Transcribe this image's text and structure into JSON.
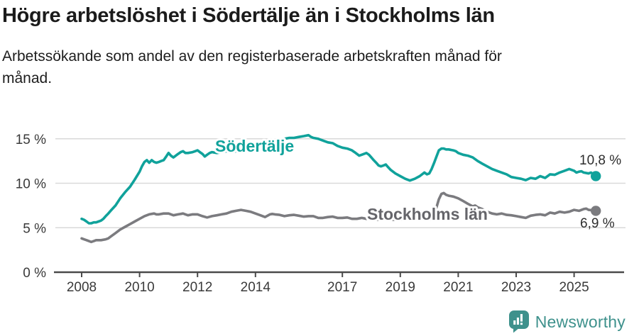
{
  "header": {
    "title": "Högre arbetslöshet i Södertälje än i Stockholms län",
    "subtitle": "Arbetssökande som andel av den registerbaserade arbetskraften månad för\nmånad."
  },
  "chart_data": {
    "type": "line",
    "title": "Högre arbetslöshet i Södertälje än i Stockholms län",
    "subtitle": "Arbetssökande som andel av den registerbaserade arbetskraften månad för månad.",
    "unit": "%",
    "grid": true,
    "legend_position": "inline-labels-on-lines",
    "x_axis": {
      "label": "",
      "range": [
        2007.1,
        2026.7
      ]
    },
    "y_axis": {
      "label": "",
      "range": [
        0,
        17.8
      ]
    },
    "x_ticks": [
      {
        "v": 2008,
        "label": "2008"
      },
      {
        "v": 2010,
        "label": "2010"
      },
      {
        "v": 2012,
        "label": "2012"
      },
      {
        "v": 2014,
        "label": "2014"
      },
      {
        "v": 2017,
        "label": "2017"
      },
      {
        "v": 2019,
        "label": "2019"
      },
      {
        "v": 2021,
        "label": "2021"
      },
      {
        "v": 2023,
        "label": "2023"
      },
      {
        "v": 2025,
        "label": "2025"
      }
    ],
    "y_ticks": [
      {
        "v": 0,
        "label": "0 %"
      },
      {
        "v": 5,
        "label": "5 %"
      },
      {
        "v": 10,
        "label": "10 %"
      },
      {
        "v": 15,
        "label": "15 %"
      }
    ],
    "series": [
      {
        "name": "Stockholms län",
        "color": "#7b7b7f",
        "label_color": "#65656a",
        "end_label": "6,9 %",
        "end_value": 6.9,
        "points": [
          [
            2008.0,
            3.8
          ],
          [
            2008.08,
            3.7
          ],
          [
            2008.17,
            3.6
          ],
          [
            2008.25,
            3.5
          ],
          [
            2008.33,
            3.4
          ],
          [
            2008.42,
            3.5
          ],
          [
            2008.5,
            3.6
          ],
          [
            2008.67,
            3.6
          ],
          [
            2008.83,
            3.7
          ],
          [
            2008.92,
            3.8
          ],
          [
            2009.0,
            4.0
          ],
          [
            2009.17,
            4.4
          ],
          [
            2009.33,
            4.8
          ],
          [
            2009.5,
            5.1
          ],
          [
            2009.67,
            5.4
          ],
          [
            2009.83,
            5.7
          ],
          [
            2010.0,
            6.0
          ],
          [
            2010.17,
            6.3
          ],
          [
            2010.33,
            6.5
          ],
          [
            2010.5,
            6.6
          ],
          [
            2010.58,
            6.5
          ],
          [
            2010.67,
            6.5
          ],
          [
            2010.83,
            6.6
          ],
          [
            2011.0,
            6.6
          ],
          [
            2011.17,
            6.4
          ],
          [
            2011.33,
            6.5
          ],
          [
            2011.5,
            6.6
          ],
          [
            2011.58,
            6.5
          ],
          [
            2011.67,
            6.4
          ],
          [
            2011.83,
            6.5
          ],
          [
            2012.0,
            6.5
          ],
          [
            2012.17,
            6.3
          ],
          [
            2012.33,
            6.15
          ],
          [
            2012.5,
            6.3
          ],
          [
            2012.67,
            6.4
          ],
          [
            2012.83,
            6.5
          ],
          [
            2013.0,
            6.6
          ],
          [
            2013.17,
            6.8
          ],
          [
            2013.33,
            6.9
          ],
          [
            2013.5,
            7.0
          ],
          [
            2013.67,
            6.9
          ],
          [
            2013.83,
            6.8
          ],
          [
            2014.0,
            6.6
          ],
          [
            2014.17,
            6.4
          ],
          [
            2014.33,
            6.2
          ],
          [
            2014.5,
            6.5
          ],
          [
            2014.58,
            6.55
          ],
          [
            2014.67,
            6.5
          ],
          [
            2014.83,
            6.45
          ],
          [
            2015.0,
            6.3
          ],
          [
            2015.17,
            6.4
          ],
          [
            2015.33,
            6.45
          ],
          [
            2015.5,
            6.35
          ],
          [
            2015.67,
            6.25
          ],
          [
            2015.83,
            6.3
          ],
          [
            2016.0,
            6.3
          ],
          [
            2016.17,
            6.1
          ],
          [
            2016.33,
            6.1
          ],
          [
            2016.5,
            6.2
          ],
          [
            2016.67,
            6.25
          ],
          [
            2016.83,
            6.1
          ],
          [
            2017.0,
            6.1
          ],
          [
            2017.17,
            6.15
          ],
          [
            2017.33,
            6.0
          ],
          [
            2017.5,
            6.0
          ],
          [
            2017.67,
            6.1
          ],
          [
            2017.83,
            6.0
          ],
          [
            2018.0,
            6.0
          ],
          [
            2018.17,
            5.9
          ],
          [
            2018.33,
            5.9
          ],
          [
            2018.5,
            6.0
          ],
          [
            2018.67,
            5.9
          ],
          [
            2018.83,
            5.9
          ],
          [
            2019.0,
            5.9
          ],
          [
            2019.17,
            5.95
          ],
          [
            2019.33,
            6.0
          ],
          [
            2019.5,
            6.0
          ],
          [
            2019.67,
            6.0
          ],
          [
            2019.83,
            6.0
          ],
          [
            2020.0,
            5.9
          ],
          [
            2020.08,
            6.0
          ],
          [
            2020.17,
            6.6
          ],
          [
            2020.25,
            7.3
          ],
          [
            2020.33,
            8.2
          ],
          [
            2020.42,
            8.8
          ],
          [
            2020.5,
            8.9
          ],
          [
            2020.58,
            8.7
          ],
          [
            2020.67,
            8.6
          ],
          [
            2020.83,
            8.5
          ],
          [
            2021.0,
            8.3
          ],
          [
            2021.17,
            8.0
          ],
          [
            2021.33,
            7.7
          ],
          [
            2021.5,
            7.4
          ],
          [
            2021.58,
            7.5
          ],
          [
            2021.67,
            7.3
          ],
          [
            2021.83,
            7.1
          ],
          [
            2022.0,
            6.8
          ],
          [
            2022.17,
            6.6
          ],
          [
            2022.33,
            6.5
          ],
          [
            2022.5,
            6.6
          ],
          [
            2022.67,
            6.45
          ],
          [
            2022.83,
            6.4
          ],
          [
            2023.0,
            6.3
          ],
          [
            2023.17,
            6.2
          ],
          [
            2023.33,
            6.1
          ],
          [
            2023.5,
            6.35
          ],
          [
            2023.67,
            6.45
          ],
          [
            2023.83,
            6.5
          ],
          [
            2024.0,
            6.4
          ],
          [
            2024.17,
            6.7
          ],
          [
            2024.33,
            6.6
          ],
          [
            2024.5,
            6.8
          ],
          [
            2024.67,
            6.7
          ],
          [
            2024.83,
            6.8
          ],
          [
            2025.0,
            7.0
          ],
          [
            2025.17,
            6.9
          ],
          [
            2025.33,
            7.1
          ],
          [
            2025.42,
            7.15
          ],
          [
            2025.5,
            7.0
          ],
          [
            2025.67,
            6.95
          ],
          [
            2025.75,
            6.9
          ]
        ]
      },
      {
        "name": "Södertälje",
        "color": "#10a29b",
        "label_color": "#10a29b",
        "end_label": "10,8 %",
        "end_value": 10.8,
        "points": [
          [
            2008.0,
            6.0
          ],
          [
            2008.08,
            5.9
          ],
          [
            2008.17,
            5.7
          ],
          [
            2008.25,
            5.5
          ],
          [
            2008.33,
            5.5
          ],
          [
            2008.42,
            5.6
          ],
          [
            2008.5,
            5.6
          ],
          [
            2008.58,
            5.7
          ],
          [
            2008.67,
            5.8
          ],
          [
            2008.75,
            6.0
          ],
          [
            2008.83,
            6.3
          ],
          [
            2008.92,
            6.6
          ],
          [
            2009.0,
            6.9
          ],
          [
            2009.17,
            7.5
          ],
          [
            2009.33,
            8.3
          ],
          [
            2009.5,
            9.0
          ],
          [
            2009.67,
            9.6
          ],
          [
            2009.83,
            10.4
          ],
          [
            2010.0,
            11.3
          ],
          [
            2010.08,
            11.9
          ],
          [
            2010.17,
            12.4
          ],
          [
            2010.25,
            12.6
          ],
          [
            2010.33,
            12.3
          ],
          [
            2010.42,
            12.6
          ],
          [
            2010.5,
            12.4
          ],
          [
            2010.58,
            12.3
          ],
          [
            2010.67,
            12.4
          ],
          [
            2010.75,
            12.5
          ],
          [
            2010.83,
            12.6
          ],
          [
            2010.92,
            13.0
          ],
          [
            2011.0,
            13.4
          ],
          [
            2011.08,
            13.1
          ],
          [
            2011.17,
            12.9
          ],
          [
            2011.25,
            13.1
          ],
          [
            2011.33,
            13.3
          ],
          [
            2011.42,
            13.5
          ],
          [
            2011.5,
            13.6
          ],
          [
            2011.58,
            13.4
          ],
          [
            2011.67,
            13.4
          ],
          [
            2011.83,
            13.5
          ],
          [
            2011.92,
            13.6
          ],
          [
            2012.0,
            13.7
          ],
          [
            2012.08,
            13.5
          ],
          [
            2012.17,
            13.3
          ],
          [
            2012.25,
            13.0
          ],
          [
            2012.33,
            13.2
          ],
          [
            2012.42,
            13.4
          ],
          [
            2012.5,
            13.5
          ],
          [
            2012.67,
            13.4
          ],
          [
            2012.83,
            13.5
          ],
          [
            2013.0,
            13.6
          ],
          [
            2013.17,
            13.5
          ],
          [
            2013.33,
            13.6
          ],
          [
            2013.5,
            13.8
          ],
          [
            2013.67,
            13.7
          ],
          [
            2013.83,
            13.8
          ],
          [
            2014.0,
            13.9
          ],
          [
            2014.17,
            13.8
          ],
          [
            2014.33,
            13.9
          ],
          [
            2014.5,
            14.0
          ],
          [
            2014.67,
            14.3
          ],
          [
            2014.83,
            14.7
          ],
          [
            2015.0,
            15.0
          ],
          [
            2015.17,
            15.1
          ],
          [
            2015.33,
            15.1
          ],
          [
            2015.5,
            15.2
          ],
          [
            2015.67,
            15.3
          ],
          [
            2015.83,
            15.4
          ],
          [
            2015.92,
            15.2
          ],
          [
            2016.0,
            15.1
          ],
          [
            2016.17,
            15.0
          ],
          [
            2016.33,
            14.8
          ],
          [
            2016.5,
            14.6
          ],
          [
            2016.67,
            14.5
          ],
          [
            2016.83,
            14.2
          ],
          [
            2017.0,
            14.0
          ],
          [
            2017.17,
            13.9
          ],
          [
            2017.33,
            13.7
          ],
          [
            2017.42,
            13.5
          ],
          [
            2017.5,
            13.3
          ],
          [
            2017.58,
            13.1
          ],
          [
            2017.67,
            13.2
          ],
          [
            2017.83,
            13.4
          ],
          [
            2017.92,
            13.2
          ],
          [
            2018.0,
            12.9
          ],
          [
            2018.08,
            12.6
          ],
          [
            2018.17,
            12.3
          ],
          [
            2018.25,
            12.0
          ],
          [
            2018.33,
            11.9
          ],
          [
            2018.42,
            12.0
          ],
          [
            2018.5,
            12.1
          ],
          [
            2018.58,
            11.8
          ],
          [
            2018.67,
            11.5
          ],
          [
            2018.83,
            11.1
          ],
          [
            2019.0,
            10.8
          ],
          [
            2019.17,
            10.5
          ],
          [
            2019.33,
            10.3
          ],
          [
            2019.5,
            10.5
          ],
          [
            2019.67,
            10.8
          ],
          [
            2019.83,
            11.2
          ],
          [
            2019.92,
            11.0
          ],
          [
            2020.0,
            11.1
          ],
          [
            2020.08,
            11.6
          ],
          [
            2020.17,
            12.3
          ],
          [
            2020.25,
            13.0
          ],
          [
            2020.33,
            13.7
          ],
          [
            2020.42,
            13.9
          ],
          [
            2020.5,
            13.9
          ],
          [
            2020.58,
            13.8
          ],
          [
            2020.67,
            13.8
          ],
          [
            2020.83,
            13.7
          ],
          [
            2020.92,
            13.6
          ],
          [
            2021.0,
            13.4
          ],
          [
            2021.17,
            13.2
          ],
          [
            2021.33,
            13.1
          ],
          [
            2021.5,
            12.9
          ],
          [
            2021.67,
            12.5
          ],
          [
            2021.83,
            12.2
          ],
          [
            2022.0,
            11.9
          ],
          [
            2022.17,
            11.6
          ],
          [
            2022.33,
            11.4
          ],
          [
            2022.5,
            11.2
          ],
          [
            2022.67,
            11.0
          ],
          [
            2022.83,
            10.7
          ],
          [
            2023.0,
            10.6
          ],
          [
            2023.17,
            10.5
          ],
          [
            2023.33,
            10.35
          ],
          [
            2023.5,
            10.6
          ],
          [
            2023.67,
            10.5
          ],
          [
            2023.83,
            10.8
          ],
          [
            2024.0,
            10.6
          ],
          [
            2024.17,
            11.0
          ],
          [
            2024.33,
            10.95
          ],
          [
            2024.5,
            11.2
          ],
          [
            2024.67,
            11.4
          ],
          [
            2024.83,
            11.6
          ],
          [
            2025.0,
            11.4
          ],
          [
            2025.08,
            11.2
          ],
          [
            2025.17,
            11.3
          ],
          [
            2025.25,
            11.35
          ],
          [
            2025.33,
            11.2
          ],
          [
            2025.5,
            11.1
          ],
          [
            2025.58,
            11.2
          ],
          [
            2025.67,
            11.0
          ],
          [
            2025.75,
            10.8
          ]
        ]
      }
    ]
  },
  "footer": {
    "brand": "Newsworthy",
    "logo_icon": "newsworthy-speech-bubble-bar-chart-icon"
  },
  "colors": {
    "accent_teal": "#10a29b",
    "series_gray": "#7b7b7f",
    "gray_label": "#65656a",
    "axis": "#4a4a4a",
    "grid": "#d9d9d9",
    "tick_text": "#3a3a3a",
    "text": "#1b1b1b",
    "brand_teal": "#3e918c"
  }
}
